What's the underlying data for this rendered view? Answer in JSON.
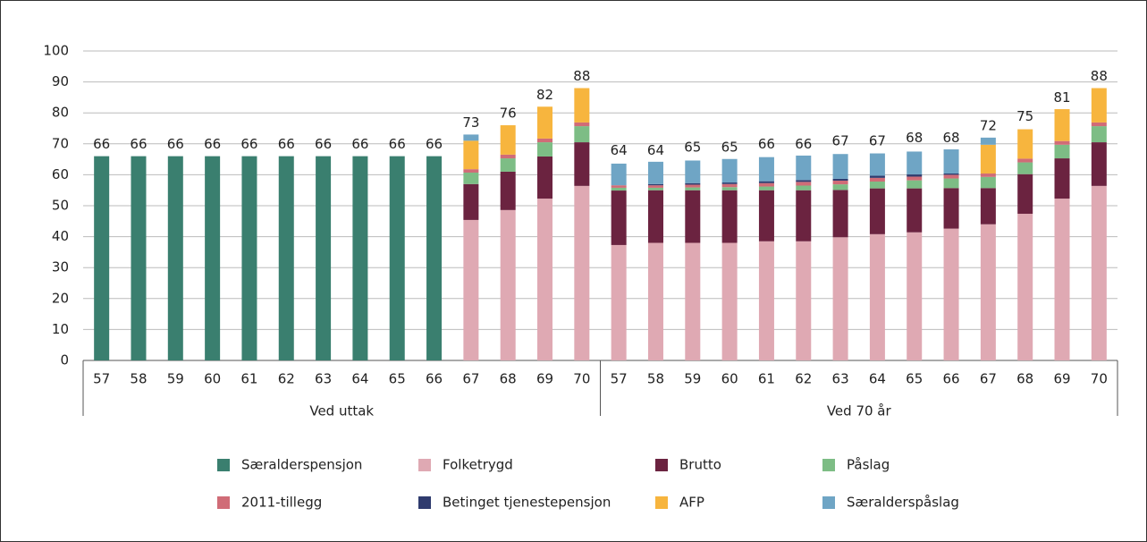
{
  "chart_data": {
    "type": "stacked-bar",
    "categories": [
      "57",
      "58",
      "59",
      "60",
      "61",
      "62",
      "63",
      "64",
      "65",
      "66",
      "67",
      "68",
      "69",
      "70",
      "57",
      "58",
      "59",
      "60",
      "61",
      "62",
      "63",
      "64",
      "65",
      "66",
      "67",
      "68",
      "69",
      "70"
    ],
    "group_labels": [
      "Ved uttak",
      "Ved 70 år"
    ],
    "totals": [
      66,
      66,
      66,
      66,
      66,
      66,
      66,
      66,
      66,
      66,
      73,
      76,
      82,
      88,
      64,
      64,
      65,
      65,
      66,
      66,
      67,
      67,
      68,
      68,
      72,
      75,
      81,
      88
    ],
    "ylim": [
      0,
      100
    ],
    "yticks": [
      0,
      10,
      20,
      30,
      40,
      50,
      60,
      70,
      80,
      90,
      100
    ],
    "grid": true,
    "series": [
      {
        "name": "Særalderspensjon",
        "color": "#3a7f6f",
        "values": [
          66,
          66,
          66,
          66,
          66,
          66,
          66,
          66,
          66,
          66,
          0,
          0,
          0,
          0,
          0,
          0,
          0,
          0,
          0,
          0,
          0,
          0,
          0,
          0,
          0,
          0,
          0,
          0
        ]
      },
      {
        "name": "Folketrygd",
        "color": "#dfa9b3",
        "values": [
          0,
          0,
          0,
          0,
          0,
          0,
          0,
          0,
          0,
          0,
          45.4,
          48.6,
          52.3,
          56.4,
          37.3,
          38,
          38,
          38,
          38.5,
          38.5,
          39.8,
          40.8,
          41.4,
          42.6,
          44,
          47.4,
          52.3,
          56.4
        ]
      },
      {
        "name": "Brutto",
        "color": "#6b2340",
        "values": [
          0,
          0,
          0,
          0,
          0,
          0,
          0,
          0,
          0,
          0,
          11.6,
          12.4,
          13.6,
          14.1,
          17.6,
          17,
          17,
          17,
          16.5,
          16.5,
          15.3,
          14.8,
          14.2,
          13.1,
          11.7,
          12.8,
          13,
          14.1
        ]
      },
      {
        "name": "Påslag",
        "color": "#7dbd85",
        "values": [
          0,
          0,
          0,
          0,
          0,
          0,
          0,
          0,
          0,
          0,
          3.7,
          4.3,
          4.6,
          5.2,
          0.9,
          0.8,
          0.9,
          1,
          1.2,
          1.5,
          1.8,
          2.2,
          2.6,
          3.1,
          3.6,
          3.8,
          4.4,
          5.2
        ]
      },
      {
        "name": "2011-tillegg",
        "color": "#d06c77",
        "values": [
          0,
          0,
          0,
          0,
          0,
          0,
          0,
          0,
          0,
          0,
          1.1,
          1.2,
          1.2,
          1.2,
          0.8,
          0.8,
          0.9,
          1,
          1.1,
          1.2,
          1.2,
          1.2,
          1.2,
          1.2,
          1.1,
          1.2,
          1.2,
          1.2
        ]
      },
      {
        "name": "Betinget tjenestepensjon",
        "color": "#2f3b6e",
        "values": [
          0,
          0,
          0,
          0,
          0,
          0,
          0,
          0,
          0,
          0,
          0,
          0,
          0,
          0,
          0,
          0.4,
          0.5,
          0.5,
          0.6,
          0.6,
          0.6,
          0.7,
          0.7,
          0.4,
          0,
          0,
          0,
          0
        ]
      },
      {
        "name": "AFP",
        "color": "#f7b53e",
        "values": [
          0,
          0,
          0,
          0,
          0,
          0,
          0,
          0,
          0,
          0,
          9.2,
          9.5,
          10.3,
          11.1,
          0,
          0,
          0,
          0,
          0,
          0,
          0,
          0,
          0,
          0,
          9.3,
          9.5,
          10.3,
          11.1
        ]
      },
      {
        "name": "Særalderspåslag",
        "color": "#6fa5c5",
        "values": [
          0,
          0,
          0,
          0,
          0,
          0,
          0,
          0,
          0,
          0,
          2,
          0,
          0,
          0,
          7,
          7.2,
          7.3,
          7.6,
          7.8,
          7.9,
          8,
          7.2,
          7.4,
          7.8,
          2.3,
          0,
          0,
          0
        ]
      }
    ]
  }
}
